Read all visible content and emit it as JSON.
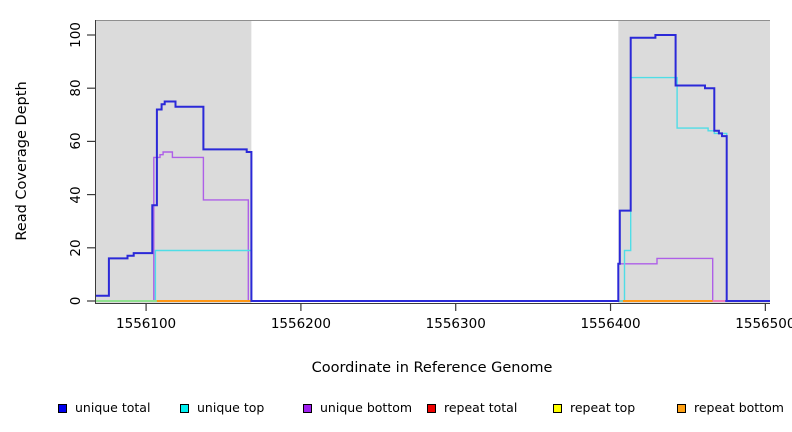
{
  "chart_data": {
    "type": "line",
    "subtype": "step-coverage",
    "title": "",
    "xlabel": "Coordinate in Reference Genome",
    "ylabel": "Read Coverage Depth",
    "xlim": [
      1556067,
      1556503
    ],
    "ylim": [
      0,
      100
    ],
    "x_ticks": [
      1556100,
      1556200,
      1556300,
      1556400,
      1556500
    ],
    "x_tick_labels": [
      "1556100",
      "1556200",
      "1556300",
      "1556400",
      "1556500"
    ],
    "y_ticks": [
      0,
      20,
      40,
      60,
      80,
      100
    ],
    "y_tick_labels": [
      "0",
      "20",
      "40",
      "60",
      "80",
      "100"
    ],
    "grid": false,
    "background_color": "#ffffff",
    "shaded_regions": [
      {
        "name": "left-gray-band",
        "from": 1556067,
        "to": 1556168,
        "color": "#dbdbdb"
      },
      {
        "name": "right-gray-band",
        "from": 1556405,
        "to": 1556503,
        "color": "#dbdbdb"
      }
    ],
    "series": [
      {
        "name": "repeat total",
        "color": "#dd0000",
        "width": 1.3,
        "layer": 1,
        "points": [
          [
            1556067,
            0
          ],
          [
            1556503,
            0
          ]
        ]
      },
      {
        "name": "repeat top",
        "color": "#f5f500",
        "width": 1.3,
        "layer": 2,
        "points": [
          [
            1556067,
            0
          ],
          [
            1556503,
            0
          ]
        ]
      },
      {
        "name": "repeat bottom",
        "color": "#ff9614",
        "width": 1.3,
        "layer": 3,
        "points": [
          [
            1556067,
            0
          ],
          [
            1556503,
            0
          ]
        ]
      },
      {
        "name": "unique bottom",
        "color": "#ae5fe8",
        "width": 1.4,
        "layer": 4,
        "points": [
          [
            1556067,
            0
          ],
          [
            1556105,
            54
          ],
          [
            1556109,
            55
          ],
          [
            1556111,
            56
          ],
          [
            1556117,
            54
          ],
          [
            1556137,
            38
          ],
          [
            1556166,
            0
          ],
          [
            1556405,
            14
          ],
          [
            1556430,
            16
          ],
          [
            1556466,
            0
          ],
          [
            1556503,
            0
          ]
        ]
      },
      {
        "name": "unique top",
        "color": "#4fdde6",
        "width": 1.4,
        "layer": 5,
        "points": [
          [
            1556067,
            0
          ],
          [
            1556106,
            19
          ],
          [
            1556168,
            0
          ],
          [
            1556409,
            19
          ],
          [
            1556413,
            84
          ],
          [
            1556443,
            65
          ],
          [
            1556463,
            64
          ],
          [
            1556467,
            63
          ],
          [
            1556475,
            0
          ],
          [
            1556503,
            0
          ]
        ]
      },
      {
        "name": "unique total",
        "color": "#2b29d8",
        "width": 2,
        "layer": 7,
        "points": [
          [
            1556067,
            2
          ],
          [
            1556076,
            16
          ],
          [
            1556088,
            17
          ],
          [
            1556092,
            18
          ],
          [
            1556104,
            36
          ],
          [
            1556107,
            72
          ],
          [
            1556110,
            74
          ],
          [
            1556112,
            75
          ],
          [
            1556119,
            73
          ],
          [
            1556137,
            57
          ],
          [
            1556165,
            56
          ],
          [
            1556168,
            0
          ],
          [
            1556405,
            14
          ],
          [
            1556406,
            34
          ],
          [
            1556413,
            99
          ],
          [
            1556429,
            100
          ],
          [
            1556442,
            81
          ],
          [
            1556461,
            80
          ],
          [
            1556467,
            64
          ],
          [
            1556470,
            63
          ],
          [
            1556472,
            62
          ],
          [
            1556475,
            0
          ],
          [
            1556503,
            0
          ]
        ]
      }
    ],
    "zero_level_segments": [
      {
        "from": 1556067,
        "to": 1556107,
        "color": "#8fe08f"
      },
      {
        "from": 1556107,
        "to": 1556168,
        "color": "#ff9614"
      },
      {
        "from": 1556168,
        "to": 1556405,
        "color": "#4840e0"
      },
      {
        "from": 1556408,
        "to": 1556466,
        "color": "#ff9614"
      },
      {
        "from": 1556466,
        "to": 1556474,
        "color": "#ee7bbe"
      },
      {
        "from": 1556474,
        "to": 1556503,
        "color": "#5b4fe2"
      }
    ],
    "legend": {
      "position": "bottom",
      "items": [
        {
          "label": "unique total",
          "color": "#0000ee"
        },
        {
          "label": "unique top",
          "color": "#00f0f0"
        },
        {
          "label": "unique bottom",
          "color": "#a020f0"
        },
        {
          "label": "repeat total",
          "color": "#ee0000"
        },
        {
          "label": "repeat top",
          "color": "#ffff00"
        },
        {
          "label": "repeat bottom",
          "color": "#ffa114"
        }
      ]
    },
    "axis_color": "#3a3a3a"
  }
}
